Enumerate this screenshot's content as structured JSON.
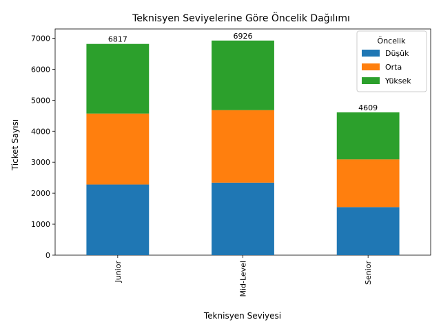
{
  "chart_data": {
    "type": "bar",
    "stacked": true,
    "title": "Teknisyen Seviyelerine Göre Öncelik Dağılımı",
    "xlabel": "Teknisyen Seviyesi",
    "ylabel": "Ticket Sayısı",
    "categories": [
      "Junior",
      "Mid-Level",
      "Senior"
    ],
    "series": [
      {
        "name": "Düşük",
        "color": "#1f77b4",
        "values": [
          2280,
          2340,
          1550
        ]
      },
      {
        "name": "Orta",
        "color": "#ff7f0e",
        "values": [
          2290,
          2340,
          1540
        ]
      },
      {
        "name": "Yüksek",
        "color": "#2ca02c",
        "values": [
          2247,
          2246,
          1519
        ]
      }
    ],
    "totals": [
      6817,
      6926,
      4609
    ],
    "ylim": [
      0,
      7300
    ],
    "yticks": [
      0,
      1000,
      2000,
      3000,
      4000,
      5000,
      6000,
      7000
    ],
    "legend": {
      "title": "Öncelik",
      "position": "top-right"
    },
    "grid": false
  }
}
